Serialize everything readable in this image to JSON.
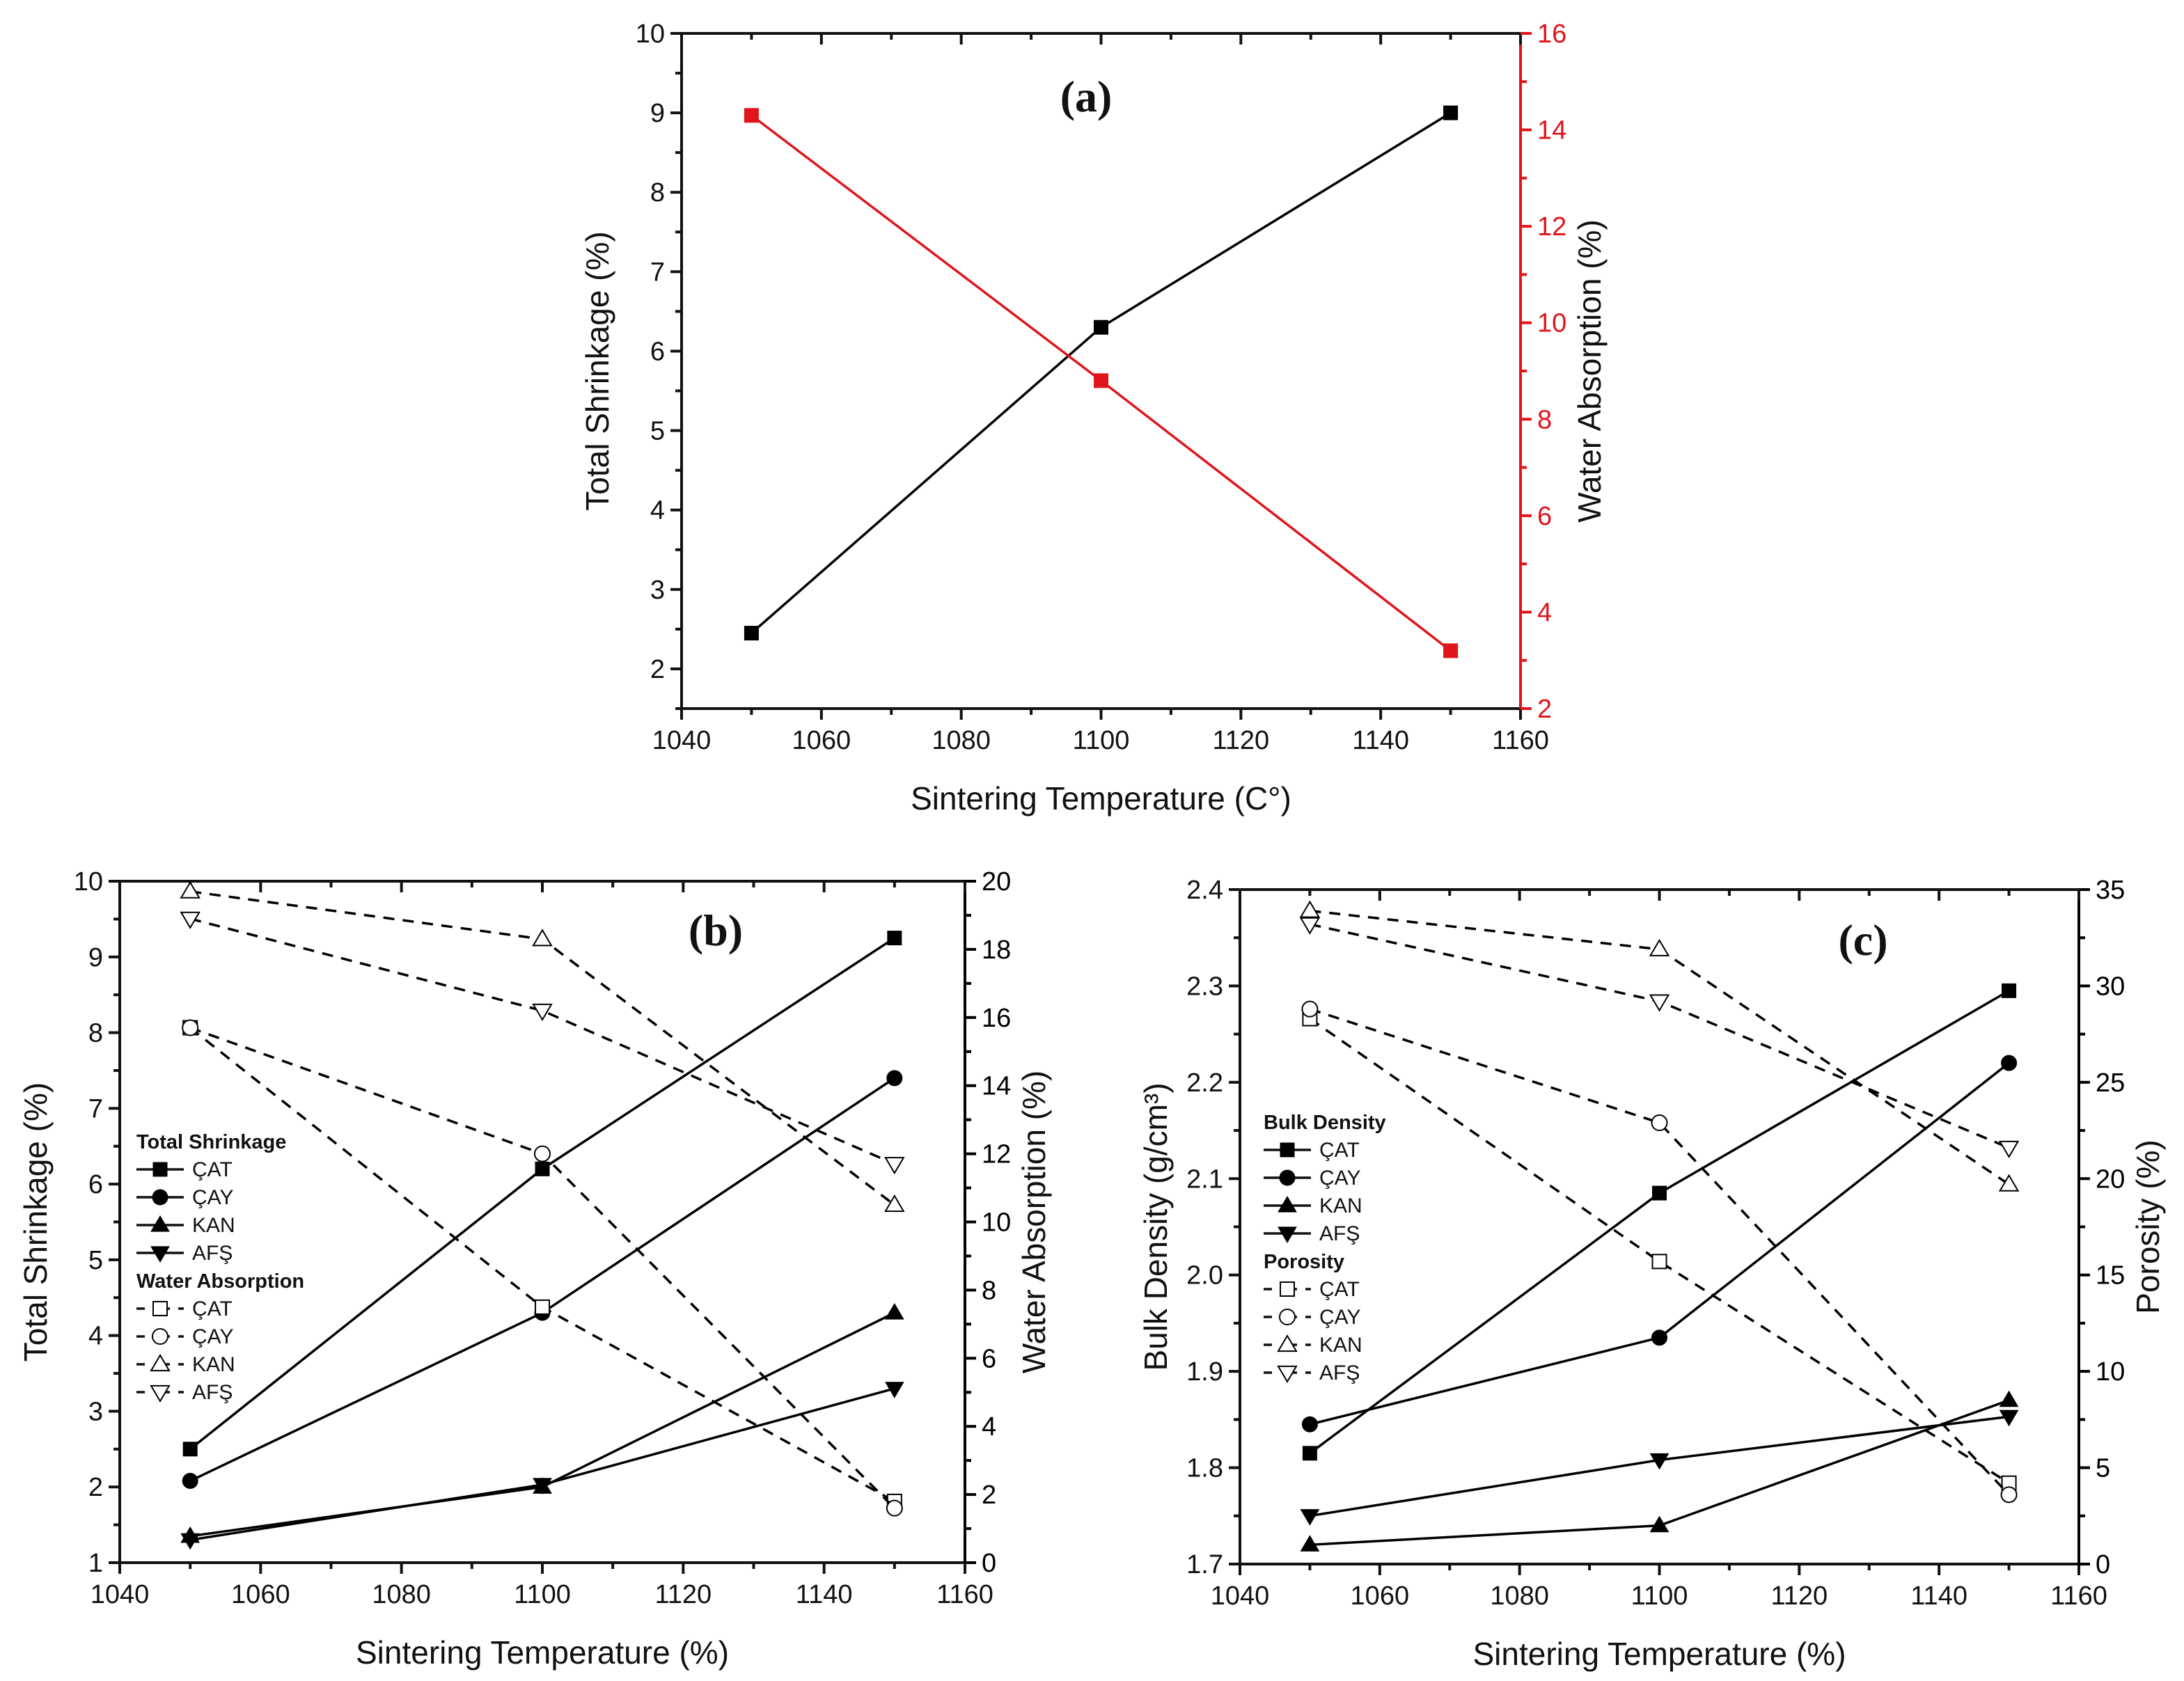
{
  "chart_data": [
    {
      "id": "a",
      "type": "line",
      "panel_label": "(a)",
      "xlabel": "Sintering Temperature (C°)",
      "ylabel": "Total Shrinkage (%)",
      "y2label": "Water Absorption (%)",
      "xlim": [
        1040,
        1160
      ],
      "ylim": [
        1.5,
        10
      ],
      "y2lim": [
        2,
        16
      ],
      "xticks": [
        1040,
        1060,
        1080,
        1100,
        1120,
        1140,
        1160
      ],
      "yticks": [
        2,
        3,
        4,
        5,
        6,
        7,
        8,
        9,
        10
      ],
      "y2ticks": [
        2,
        4,
        6,
        8,
        10,
        12,
        14,
        16
      ],
      "grid": false,
      "legend": null,
      "x": [
        1050,
        1100,
        1150
      ],
      "series": [
        {
          "name": "Total Shrinkage",
          "axis": "left",
          "marker": "square-filled",
          "dashed": false,
          "color": "#000000",
          "values": [
            2.45,
            6.3,
            9.0
          ]
        },
        {
          "name": "Water Absorption",
          "axis": "right",
          "marker": "square-filled",
          "dashed": false,
          "color": "#e0141b",
          "values": [
            14.3,
            8.8,
            3.2
          ]
        }
      ],
      "right_axis_color": "#e0141b"
    },
    {
      "id": "b",
      "type": "line",
      "panel_label": "(b)",
      "xlabel": "Sintering Temperature (%)",
      "ylabel": "Total Shrinkage (%)",
      "y2label": "Water Absorption (%)",
      "xlim": [
        1040,
        1160
      ],
      "ylim": [
        1,
        10
      ],
      "y2lim": [
        0,
        20
      ],
      "xticks": [
        1040,
        1060,
        1080,
        1100,
        1120,
        1140,
        1160
      ],
      "yticks": [
        1,
        2,
        3,
        4,
        5,
        6,
        7,
        8,
        9,
        10
      ],
      "y2ticks": [
        0,
        2,
        4,
        6,
        8,
        10,
        12,
        14,
        16,
        18,
        20
      ],
      "grid": false,
      "legend_position": "center-left",
      "legend_groups": [
        {
          "title": "Total Shrinkage",
          "entries": [
            "ÇAT",
            "ÇAY",
            "KAN",
            "AFŞ"
          ]
        },
        {
          "title": "Water Absorption",
          "entries": [
            "ÇAT",
            "ÇAY",
            "KAN",
            "AFŞ"
          ]
        }
      ],
      "x": [
        1050,
        1100,
        1150
      ],
      "series": [
        {
          "name": "ÇAT",
          "group": "Total Shrinkage",
          "axis": "left",
          "marker": "square-filled",
          "dashed": false,
          "values": [
            2.5,
            6.2,
            9.25
          ]
        },
        {
          "name": "ÇAY",
          "group": "Total Shrinkage",
          "axis": "left",
          "marker": "circle-filled",
          "dashed": false,
          "values": [
            2.08,
            4.3,
            7.4
          ]
        },
        {
          "name": "KAN",
          "group": "Total Shrinkage",
          "axis": "left",
          "marker": "triangle-up-filled",
          "dashed": false,
          "values": [
            1.35,
            2.0,
            4.3
          ]
        },
        {
          "name": "AFŞ",
          "group": "Total Shrinkage",
          "axis": "left",
          "marker": "triangle-down-filled",
          "dashed": false,
          "values": [
            1.3,
            2.03,
            3.3
          ]
        },
        {
          "name": "ÇAT",
          "group": "Water Absorption",
          "axis": "right",
          "marker": "square-open",
          "dashed": true,
          "values": [
            15.7,
            7.5,
            1.8
          ]
        },
        {
          "name": "ÇAY",
          "group": "Water Absorption",
          "axis": "right",
          "marker": "circle-open",
          "dashed": true,
          "values": [
            15.7,
            12.0,
            1.6
          ]
        },
        {
          "name": "KAN",
          "group": "Water Absorption",
          "axis": "right",
          "marker": "triangle-up-open",
          "dashed": true,
          "values": [
            19.7,
            18.3,
            10.5
          ]
        },
        {
          "name": "AFŞ",
          "group": "Water Absorption",
          "axis": "right",
          "marker": "triangle-down-open",
          "dashed": true,
          "values": [
            18.9,
            16.2,
            11.7
          ]
        }
      ]
    },
    {
      "id": "c",
      "type": "line",
      "panel_label": "(c)",
      "xlabel": "Sintering Temperature (%)",
      "ylabel": "Bulk Density (g/cm³)",
      "y2label": "Porosity (%)",
      "xlim": [
        1040,
        1160
      ],
      "ylim": [
        1.7,
        2.4
      ],
      "y2lim": [
        0,
        35
      ],
      "xticks": [
        1040,
        1060,
        1080,
        1100,
        1120,
        1140,
        1160
      ],
      "yticks": [
        "1.7",
        "1.8",
        "1.9",
        "2.0",
        "2.1",
        "2.2",
        "2.3",
        "2.4"
      ],
      "y2ticks": [
        0,
        5,
        10,
        15,
        20,
        25,
        30,
        35
      ],
      "grid": false,
      "legend_position": "center-left",
      "legend_groups": [
        {
          "title": "Bulk Density",
          "entries": [
            "ÇAT",
            "ÇAY",
            "KAN",
            "AFŞ"
          ]
        },
        {
          "title": "Porosity",
          "entries": [
            "ÇAT",
            "ÇAY",
            "KAN",
            "AFŞ"
          ]
        }
      ],
      "x": [
        1050,
        1100,
        1150
      ],
      "series": [
        {
          "name": "ÇAT",
          "group": "Bulk Density",
          "axis": "left",
          "marker": "square-filled",
          "dashed": false,
          "values": [
            1.815,
            2.085,
            2.295
          ]
        },
        {
          "name": "ÇAY",
          "group": "Bulk Density",
          "axis": "left",
          "marker": "circle-filled",
          "dashed": false,
          "values": [
            1.845,
            1.935,
            2.22
          ]
        },
        {
          "name": "KAN",
          "group": "Bulk Density",
          "axis": "left",
          "marker": "triangle-up-filled",
          "dashed": false,
          "values": [
            1.72,
            1.74,
            1.87
          ]
        },
        {
          "name": "AFŞ",
          "group": "Bulk Density",
          "axis": "left",
          "marker": "triangle-down-filled",
          "dashed": false,
          "values": [
            1.75,
            1.808,
            1.853
          ]
        },
        {
          "name": "ÇAT",
          "group": "Porosity",
          "axis": "right",
          "marker": "square-open",
          "dashed": true,
          "values": [
            28.3,
            15.7,
            4.2
          ]
        },
        {
          "name": "ÇAY",
          "group": "Porosity",
          "axis": "right",
          "marker": "circle-open",
          "dashed": true,
          "values": [
            28.8,
            22.9,
            3.6
          ]
        },
        {
          "name": "KAN",
          "group": "Porosity",
          "axis": "right",
          "marker": "triangle-up-open",
          "dashed": true,
          "values": [
            33.9,
            31.9,
            19.7
          ]
        },
        {
          "name": "AFŞ",
          "group": "Porosity",
          "axis": "right",
          "marker": "triangle-down-open",
          "dashed": true,
          "values": [
            33.2,
            29.2,
            21.6
          ]
        }
      ]
    }
  ]
}
